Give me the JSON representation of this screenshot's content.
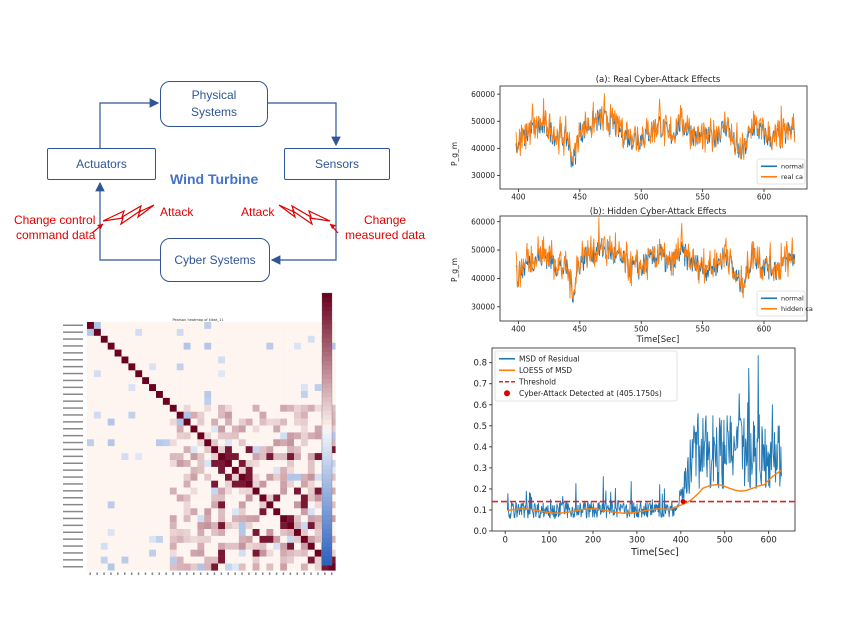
{
  "diagram": {
    "physical": "Physical\nSystems",
    "actuators": "Actuators",
    "sensors": "Sensors",
    "cyber": "Cyber Systems",
    "center_title": "Wind Turbine",
    "attack_left": "Attack",
    "attack_right": "Attack",
    "change_control": "Change control\ncommand data",
    "change_measured": "Change\nmeasured data"
  },
  "heatmap": {
    "title": "Pearson heatmap of kitwt_11"
  },
  "chart_data": [
    {
      "type": "line",
      "title": "(a): Real Cyber-Attack Effects",
      "ylabel": "P_g_m",
      "xlabel": "",
      "xlim": [
        385,
        635
      ],
      "ylim": [
        25000,
        63000
      ],
      "xticks": [
        400,
        450,
        500,
        550,
        600
      ],
      "yticks": [
        30000,
        40000,
        50000,
        60000
      ],
      "legend": "bottom-right",
      "series": [
        {
          "name": "normal",
          "color": "#1f77b4"
        },
        {
          "name": "real ca",
          "color": "#ff7f0e"
        }
      ]
    },
    {
      "type": "line",
      "title": "(b): Hidden Cyber-Attack Effects",
      "ylabel": "P_g_m",
      "xlabel": "Time[Sec]",
      "xlim": [
        385,
        635
      ],
      "ylim": [
        25000,
        62000
      ],
      "xticks": [
        400,
        450,
        500,
        550,
        600
      ],
      "yticks": [
        30000,
        40000,
        50000,
        60000
      ],
      "legend": "bottom-right",
      "series": [
        {
          "name": "normal",
          "color": "#1f77b4"
        },
        {
          "name": "hidden ca",
          "color": "#ff7f0e"
        }
      ]
    },
    {
      "type": "line",
      "title": "",
      "xlabel": "Time[Sec]",
      "ylabel": "",
      "xlim": [
        -30,
        660
      ],
      "ylim": [
        0,
        0.87
      ],
      "xticks": [
        0,
        100,
        200,
        300,
        400,
        500,
        600
      ],
      "yticks": [
        0.0,
        0.1,
        0.2,
        0.3,
        0.4,
        0.5,
        0.6,
        0.7,
        0.8
      ],
      "threshold": 0.14,
      "detected_at": 405.175,
      "legend": "top-left",
      "series": [
        {
          "name": "MSD of Residual",
          "color": "#1f77b4"
        },
        {
          "name": "LOESS of MSD",
          "color": "#ff7f0e"
        },
        {
          "name": "Threshold",
          "color": "#d62728"
        },
        {
          "name": "Cyber-Attack Detected at (405.1750s)",
          "color": "#e00000"
        }
      ]
    }
  ]
}
